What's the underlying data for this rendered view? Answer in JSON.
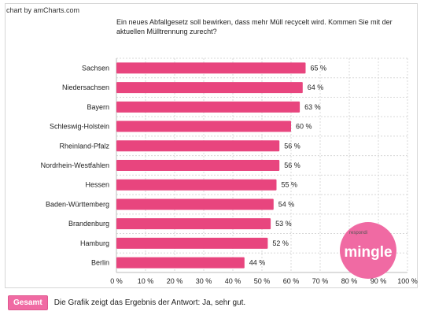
{
  "credit": "chart by amCharts.com",
  "question": "Ein neues Abfallgesetz soll bewirken, dass mehr Müll recycelt wird. Kommen Sie mit der aktuellen Mülltrennung zurecht?",
  "chart_data": {
    "type": "bar",
    "orientation": "horizontal",
    "categories": [
      "Sachsen",
      "Niedersachsen",
      "Bayern",
      "Schleswig-Holstein",
      "Rheinland-Pfalz",
      "Nordrhein-Westfahlen",
      "Hessen",
      "Baden-Württemberg",
      "Brandenburg",
      "Hamburg",
      "Berlin"
    ],
    "values": [
      65,
      64,
      63,
      60,
      56,
      56,
      55,
      54,
      53,
      52,
      44
    ],
    "value_labels": [
      "65 %",
      "64 %",
      "63 %",
      "60 %",
      "56 %",
      "56 %",
      "55 %",
      "54 %",
      "53 %",
      "52 %",
      "44 %"
    ],
    "xlim": [
      0,
      100
    ],
    "xticks": [
      "0 %",
      "10 %",
      "20 %",
      "30 %",
      "40 %",
      "50 %",
      "60 %",
      "70 %",
      "80 %",
      "90 %",
      "100 %"
    ],
    "grid": true,
    "bar_color": "#e8457e"
  },
  "logo": {
    "small_text": "respondi",
    "word": "mingle",
    "color": "#f06aa3"
  },
  "footer": {
    "button_label": "Gesamt",
    "text": "Die Grafik zeigt das Ergebnis der Antwort: Ja, sehr gut."
  }
}
